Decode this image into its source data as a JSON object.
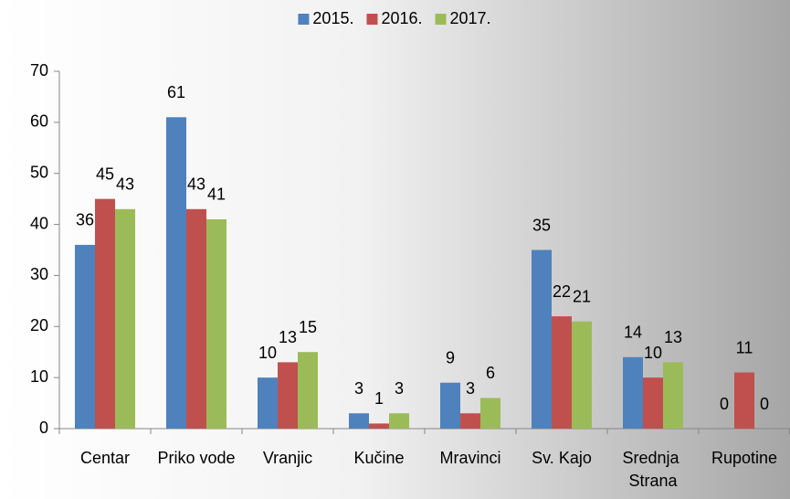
{
  "chart_data": {
    "type": "bar",
    "categories": [
      "Centar",
      "Priko vode",
      "Vranjic",
      "Kučine",
      "Mravinci",
      "Sv. Kajo",
      "Srednja Strana",
      "Rupotine"
    ],
    "series": [
      {
        "name": "2015.",
        "color": "#4f81bd",
        "values": [
          36,
          61,
          10,
          3,
          9,
          35,
          14,
          0
        ]
      },
      {
        "name": "2016.",
        "color": "#c0504d",
        "values": [
          45,
          43,
          13,
          1,
          3,
          22,
          10,
          11
        ]
      },
      {
        "name": "2017.",
        "color": "#9bbb59",
        "values": [
          43,
          41,
          15,
          3,
          6,
          21,
          13,
          0
        ]
      }
    ],
    "ylim": [
      0,
      70
    ],
    "yticks": [
      0,
      10,
      20,
      30,
      40,
      50,
      60,
      70
    ],
    "legend": "top"
  }
}
